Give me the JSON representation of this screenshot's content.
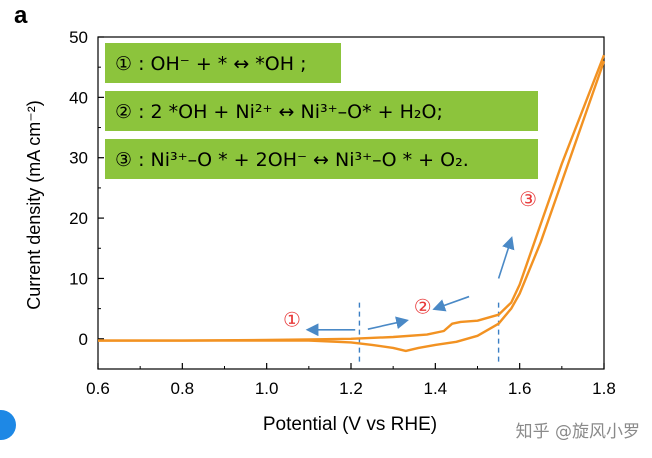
{
  "panel_label": "a",
  "watermark": "知乎 @旋风小罗",
  "equations": [
    {
      "marker": "①",
      "text": "OH⁻ + * ↔ *OH ;"
    },
    {
      "marker": "②",
      "text": "2 *OH + Ni²⁺ ↔ Ni³⁺–O* + H₂O;"
    },
    {
      "marker": "③",
      "text": "Ni³⁺–O * + 2OH⁻ ↔ Ni³⁺–O * + O₂."
    }
  ],
  "region_markers": [
    "①",
    "②",
    "③"
  ],
  "colors": {
    "curve": "#f29222",
    "box": "#8cc43c",
    "arrow": "#4a89c6",
    "dashed": "#3b7fc4",
    "marker": "#e83a3a"
  },
  "chart_data": {
    "type": "line",
    "xlabel": "Potential (V vs RHE)",
    "ylabel": "Current density (mA cm⁻²)",
    "xlim": [
      0.6,
      1.8
    ],
    "ylim": [
      -5,
      50
    ],
    "xticks": [
      "0.6",
      "0.8",
      "1.0",
      "1.2",
      "1.4",
      "1.6",
      "1.8"
    ],
    "yticks": [
      "0",
      "10",
      "20",
      "30",
      "40",
      "50"
    ],
    "vlines": [
      1.22,
      1.55
    ],
    "series": [
      {
        "x": [
          0.6,
          0.8,
          1.0,
          1.1,
          1.2,
          1.3,
          1.38,
          1.42,
          1.44,
          1.46,
          1.5,
          1.55,
          1.58,
          1.6,
          1.62,
          1.65,
          1.7,
          1.75,
          1.8
        ],
        "y": [
          -0.3,
          -0.3,
          -0.2,
          -0.1,
          0.0,
          0.3,
          0.7,
          1.3,
          2.5,
          2.8,
          3.0,
          4.0,
          6.0,
          9.0,
          13.0,
          19.0,
          29.0,
          38.0,
          47.0
        ]
      },
      {
        "x": [
          1.8,
          1.75,
          1.7,
          1.65,
          1.6,
          1.58,
          1.55,
          1.5,
          1.45,
          1.4,
          1.36,
          1.33,
          1.3,
          1.25,
          1.2,
          1.1,
          1.0,
          0.8,
          0.6
        ],
        "y": [
          46.0,
          36.0,
          26.0,
          16.0,
          7.5,
          5.0,
          2.5,
          0.5,
          -0.5,
          -1.0,
          -1.5,
          -2.0,
          -1.5,
          -1.0,
          -0.6,
          -0.3,
          -0.3,
          -0.3,
          -0.3
        ]
      }
    ],
    "arrows": [
      {
        "from": [
          1.21,
          1.5
        ],
        "to": [
          1.1,
          1.5
        ]
      },
      {
        "from": [
          1.24,
          1.6
        ],
        "to": [
          1.33,
          3.0
        ]
      },
      {
        "from": [
          1.48,
          7.0
        ],
        "to": [
          1.4,
          5.0
        ]
      },
      {
        "from": [
          1.55,
          10.0
        ],
        "to": [
          1.58,
          16.5
        ]
      }
    ],
    "marker_positions": [
      [
        1.06,
        2.0
      ],
      [
        1.37,
        4.2
      ],
      [
        1.62,
        22.0
      ]
    ]
  }
}
